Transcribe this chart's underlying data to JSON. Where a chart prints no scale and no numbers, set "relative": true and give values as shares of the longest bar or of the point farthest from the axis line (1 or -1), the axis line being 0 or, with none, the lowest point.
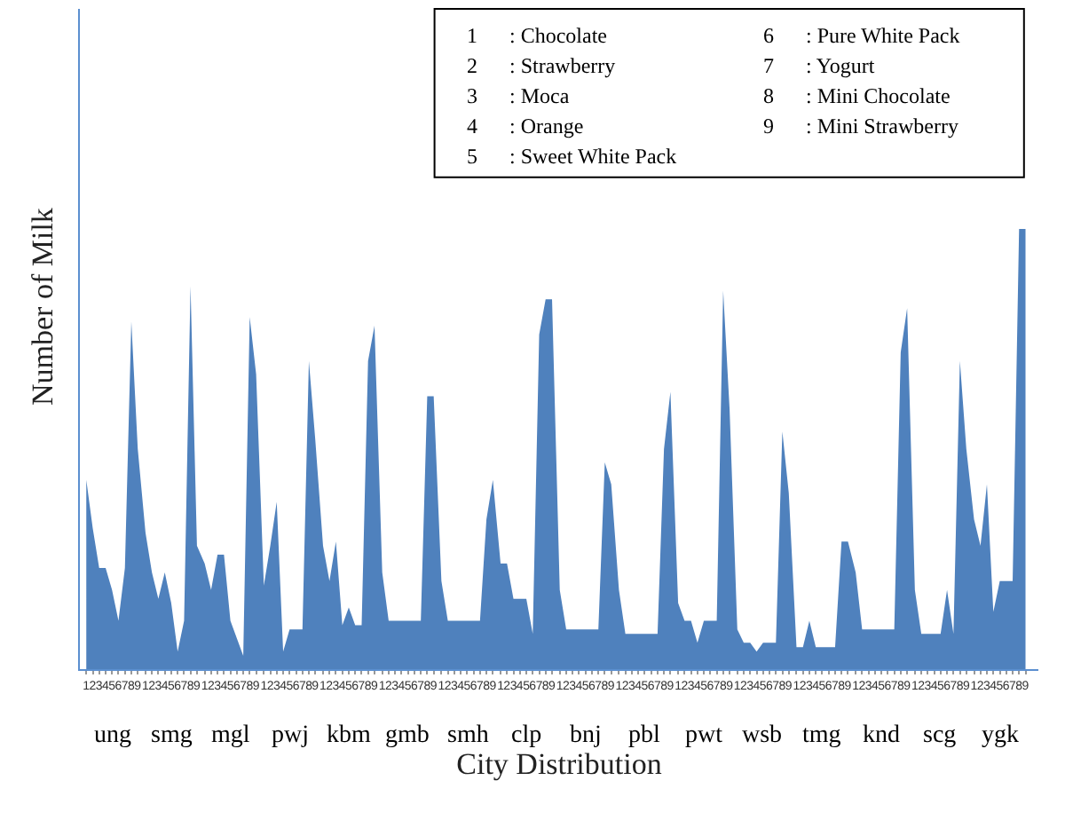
{
  "chart_data": {
    "type": "area",
    "relative": true,
    "xlabel": "City Distribution",
    "ylabel": "Number of Milk",
    "categories": [
      "1",
      "2",
      "3",
      "4",
      "5",
      "6",
      "7",
      "8",
      "9",
      "1",
      "2",
      "3",
      "4",
      "5",
      "6",
      "7",
      "8",
      "9",
      "1",
      "2",
      "3",
      "4",
      "5",
      "6",
      "7",
      "8",
      "9",
      "1",
      "2",
      "3",
      "4",
      "5",
      "6",
      "7",
      "8",
      "9",
      "1",
      "2",
      "3",
      "4",
      "5",
      "6",
      "7",
      "8",
      "9",
      "1",
      "2",
      "3",
      "4",
      "5",
      "6",
      "7",
      "8",
      "9",
      "1",
      "2",
      "3",
      "4",
      "5",
      "6",
      "7",
      "8",
      "9",
      "1",
      "2",
      "3",
      "4",
      "5",
      "6",
      "7",
      "8",
      "9",
      "1",
      "2",
      "3",
      "4",
      "5",
      "6",
      "7",
      "8",
      "9",
      "1",
      "2",
      "3",
      "4",
      "5",
      "6",
      "7",
      "8",
      "9",
      "1",
      "2",
      "3",
      "4",
      "5",
      "6",
      "7",
      "8",
      "9",
      "1",
      "2",
      "3",
      "4",
      "5",
      "6",
      "7",
      "8",
      "9",
      "1",
      "2",
      "3",
      "4",
      "5",
      "6",
      "7",
      "8",
      "9",
      "1",
      "2",
      "3",
      "4",
      "5",
      "6",
      "7",
      "8",
      "9",
      "1",
      "2",
      "3",
      "4",
      "5",
      "6",
      "7",
      "8",
      "9",
      "1",
      "2",
      "3",
      "4",
      "5",
      "6",
      "7",
      "8",
      "9"
    ],
    "series": [
      {
        "color": "#4f81bd",
        "values": [
          0.43,
          0.32,
          0.23,
          0.23,
          0.18,
          0.11,
          0.23,
          0.79,
          0.5,
          0.31,
          0.22,
          0.16,
          0.22,
          0.15,
          0.04,
          0.11,
          0.87,
          0.28,
          0.24,
          0.18,
          0.26,
          0.26,
          0.11,
          0.07,
          0.03,
          0.8,
          0.67,
          0.19,
          0.28,
          0.38,
          0.04,
          0.09,
          0.09,
          0.09,
          0.7,
          0.52,
          0.28,
          0.2,
          0.29,
          0.1,
          0.14,
          0.1,
          0.1,
          0.7,
          0.78,
          0.22,
          0.11,
          0.11,
          0.11,
          0.11,
          0.11,
          0.11,
          0.62,
          0.62,
          0.2,
          0.11,
          0.11,
          0.11,
          0.11,
          0.11,
          0.11,
          0.34,
          0.43,
          0.24,
          0.24,
          0.16,
          0.16,
          0.16,
          0.08,
          0.76,
          0.84,
          0.84,
          0.18,
          0.09,
          0.09,
          0.09,
          0.09,
          0.09,
          0.09,
          0.47,
          0.42,
          0.18,
          0.08,
          0.08,
          0.08,
          0.08,
          0.08,
          0.08,
          0.5,
          0.63,
          0.15,
          0.11,
          0.11,
          0.06,
          0.11,
          0.11,
          0.11,
          0.86,
          0.59,
          0.09,
          0.06,
          0.06,
          0.04,
          0.06,
          0.06,
          0.06,
          0.54,
          0.4,
          0.05,
          0.05,
          0.11,
          0.05,
          0.05,
          0.05,
          0.05,
          0.29,
          0.29,
          0.22,
          0.09,
          0.09,
          0.09,
          0.09,
          0.09,
          0.09,
          0.72,
          0.82,
          0.18,
          0.08,
          0.08,
          0.08,
          0.08,
          0.18,
          0.08,
          0.7,
          0.5,
          0.34,
          0.28,
          0.42,
          0.13,
          0.2,
          0.2,
          0.2,
          1.0,
          1.0
        ]
      }
    ],
    "annotations": [
      "ung",
      "smg",
      "mgl",
      "pwj",
      "kbm",
      "gmb",
      "smh",
      "clp",
      "bnj",
      "pbl",
      "pwt",
      "wsb",
      "tmg",
      "knd",
      "scg",
      "ygk",
      "1      : Chocolate",
      "2      : Strawberry",
      "3      : Moca",
      "4      : Orange",
      "5      : Sweet White Pack",
      "6      : Pure White Pack",
      "7      : Yogurt",
      "8      : Mini Chocolate",
      "9      : Mini Strawberry"
    ],
    "marker": "none"
  }
}
